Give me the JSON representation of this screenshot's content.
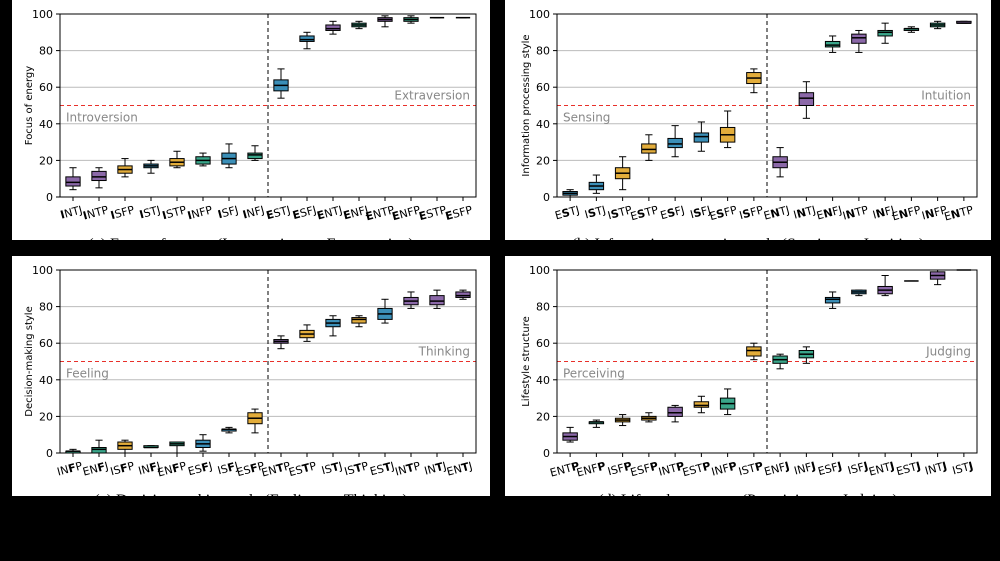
{
  "chart_data": [
    {
      "type": "box",
      "ylabel": "Focus of energy",
      "caption": "(a) Focus of energy (Introversion vs. Extraversion)",
      "categories": [
        "INTJ",
        "INTP",
        "ISFP",
        "ISTJ",
        "ISTP",
        "INFP",
        "ISFJ",
        "INFJ",
        "ESTJ",
        "ESFJ",
        "ENTJ",
        "ENFJ",
        "ENTP",
        "ENFP",
        "ESTP",
        "ESFP"
      ],
      "highlight_letter": 0,
      "whisker_low": [
        4,
        5,
        11,
        13,
        16,
        17,
        16,
        20,
        54,
        81,
        89,
        92,
        93,
        95,
        98,
        98
      ],
      "q1": [
        6,
        9,
        13,
        16,
        17,
        18,
        18,
        21,
        58,
        85,
        91,
        93,
        96,
        96,
        98,
        98
      ],
      "median": [
        8,
        11,
        15,
        17,
        19,
        20,
        21,
        23,
        61,
        86,
        92,
        94,
        97,
        97,
        98,
        98
      ],
      "q3": [
        11,
        14,
        17,
        18,
        21,
        22,
        24,
        24,
        64,
        88,
        94,
        95,
        98,
        98,
        98,
        98
      ],
      "whisker_high": [
        16,
        16,
        21,
        20,
        25,
        24,
        29,
        28,
        70,
        90,
        96,
        96,
        99,
        99,
        98,
        98
      ],
      "colors": [
        "#8b68a8",
        "#8b68a8",
        "#e3ad3b",
        "#3b8fb8",
        "#e3ad3b",
        "#3aa68a",
        "#3b8fb8",
        "#3aa68a",
        "#3b8fb8",
        "#3b8fb8",
        "#8b68a8",
        "#3aa68a",
        "#8b68a8",
        "#3aa68a",
        "#e3ad3b",
        "#e3ad3b"
      ],
      "reference_line": 50,
      "reference_labels": [
        "Introversion",
        "Extraversion"
      ],
      "divider_after": 7,
      "ylim": [
        0,
        100
      ],
      "yticks": [
        0,
        20,
        40,
        60,
        80,
        100
      ],
      "grid": true
    },
    {
      "type": "box",
      "ylabel": "Information processing style",
      "caption": "(b) Information processing style (Sensing vs. Intuition)",
      "categories": [
        "ESTJ",
        "ISTJ",
        "ISTP",
        "ESTP",
        "ESFJ",
        "ISFJ",
        "ESFP",
        "ISFP",
        "ENTJ",
        "INTJ",
        "ENFJ",
        "INTP",
        "INFJ",
        "ENFP",
        "INFP",
        "ENTP"
      ],
      "highlight_letter": 1,
      "whisker_low": [
        0,
        2,
        4,
        20,
        22,
        25,
        27,
        57,
        11,
        43,
        79,
        79,
        84,
        90,
        92,
        95
      ],
      "q1": [
        1,
        4,
        10,
        24,
        27,
        30,
        30,
        62,
        16,
        50,
        82,
        84,
        88,
        91,
        93,
        95
      ],
      "median": [
        2,
        6,
        13,
        26,
        29,
        33,
        34,
        65,
        19,
        54,
        83,
        87,
        90,
        92,
        94,
        95
      ],
      "q3": [
        3,
        8,
        16,
        29,
        32,
        35,
        38,
        68,
        22,
        57,
        85,
        89,
        91,
        92,
        95,
        96
      ],
      "whisker_high": [
        4,
        12,
        22,
        34,
        39,
        41,
        47,
        70,
        27,
        63,
        88,
        91,
        95,
        93,
        96,
        96
      ],
      "colors": [
        "#3b8fb8",
        "#3b8fb8",
        "#e3ad3b",
        "#e3ad3b",
        "#3b8fb8",
        "#3b8fb8",
        "#e3ad3b",
        "#e3ad3b",
        "#8b68a8",
        "#8b68a8",
        "#3aa68a",
        "#8b68a8",
        "#3aa68a",
        "#3aa68a",
        "#3aa68a",
        "#8b68a8"
      ],
      "reference_line": 50,
      "reference_labels": [
        "Sensing",
        "Intuition"
      ],
      "divider_after": 7,
      "ylim": [
        0,
        100
      ],
      "yticks": [
        0,
        20,
        40,
        60,
        80,
        100
      ],
      "grid": true
    },
    {
      "type": "box",
      "ylabel": "Decision-making style",
      "caption": "(c) Decision-making style (Feeling vs. Thinking)",
      "categories": [
        "INFP",
        "ENFJ",
        "ISFP",
        "INFJ",
        "ENFP",
        "ESFJ",
        "ISFJ",
        "ESFP",
        "ENTP",
        "ESTP",
        "ISTJ",
        "ISTP",
        "ESTJ",
        "INTP",
        "INTJ",
        "ENTJ"
      ],
      "highlight_letter": 2,
      "whisker_low": [
        0,
        0,
        0,
        3,
        0,
        1,
        11,
        11,
        57,
        61,
        64,
        69,
        71,
        79,
        79,
        84
      ],
      "q1": [
        0,
        0,
        2,
        3,
        4,
        3,
        12,
        16,
        60,
        63,
        69,
        71,
        73,
        81,
        81,
        85
      ],
      "median": [
        1,
        2,
        4,
        3,
        5,
        5,
        13,
        19,
        61,
        65,
        71,
        73,
        76,
        83,
        83,
        86
      ],
      "q3": [
        1,
        3,
        6,
        4,
        6,
        7,
        13,
        22,
        62,
        67,
        73,
        74,
        79,
        85,
        86,
        88
      ],
      "whisker_high": [
        2,
        7,
        7,
        4,
        6,
        10,
        14,
        24,
        64,
        70,
        75,
        75,
        84,
        88,
        89,
        89
      ],
      "colors": [
        "#3aa68a",
        "#3aa68a",
        "#e3ad3b",
        "#3aa68a",
        "#3aa68a",
        "#3b8fb8",
        "#3b8fb8",
        "#e3ad3b",
        "#8b68a8",
        "#e3ad3b",
        "#3b8fb8",
        "#e3ad3b",
        "#3b8fb8",
        "#8b68a8",
        "#8b68a8",
        "#8b68a8"
      ],
      "reference_line": 50,
      "reference_labels": [
        "Feeling",
        "Thinking"
      ],
      "divider_after": 7,
      "ylim": [
        0,
        100
      ],
      "yticks": [
        0,
        20,
        40,
        60,
        80,
        100
      ],
      "grid": true
    },
    {
      "type": "box",
      "ylabel": "Lifestyle structure",
      "caption": "(d) Lifestyle structure (Perceiving vs. Judging)",
      "categories": [
        "ENTP",
        "ENFP",
        "ISFP",
        "ESFP",
        "INTP",
        "ESTP",
        "INFP",
        "ISTP",
        "ENFJ",
        "INFJ",
        "ESFJ",
        "ISFJ",
        "ENTJ",
        "ESTJ",
        "INTJ",
        "ISTJ"
      ],
      "highlight_letter": 3,
      "whisker_low": [
        6,
        14,
        15,
        17,
        17,
        22,
        21,
        51,
        46,
        49,
        79,
        86,
        86,
        94,
        92,
        100
      ],
      "q1": [
        7,
        16,
        17,
        18,
        20,
        25,
        24,
        53,
        49,
        52,
        82,
        87,
        87,
        94,
        95,
        100
      ],
      "median": [
        9,
        17,
        18,
        19,
        22,
        26,
        27,
        56,
        51,
        54,
        84,
        88,
        89,
        94,
        97,
        100
      ],
      "q3": [
        11,
        17,
        19,
        20,
        25,
        28,
        30,
        58,
        53,
        56,
        85,
        89,
        91,
        94,
        99,
        100
      ],
      "whisker_high": [
        14,
        18,
        21,
        22,
        26,
        31,
        35,
        60,
        54,
        58,
        88,
        89,
        97,
        94,
        100,
        100
      ],
      "colors": [
        "#8b68a8",
        "#3aa68a",
        "#e3ad3b",
        "#e3ad3b",
        "#8b68a8",
        "#e3ad3b",
        "#3aa68a",
        "#e3ad3b",
        "#3aa68a",
        "#3aa68a",
        "#3b8fb8",
        "#3b8fb8",
        "#8b68a8",
        "#3b8fb8",
        "#8b68a8",
        "#3b8fb8"
      ],
      "reference_line": 50,
      "reference_labels": [
        "Perceiving",
        "Judging"
      ],
      "divider_after": 7,
      "ylim": [
        0,
        100
      ],
      "yticks": [
        0,
        20,
        40,
        60,
        80,
        100
      ],
      "grid": true
    }
  ]
}
